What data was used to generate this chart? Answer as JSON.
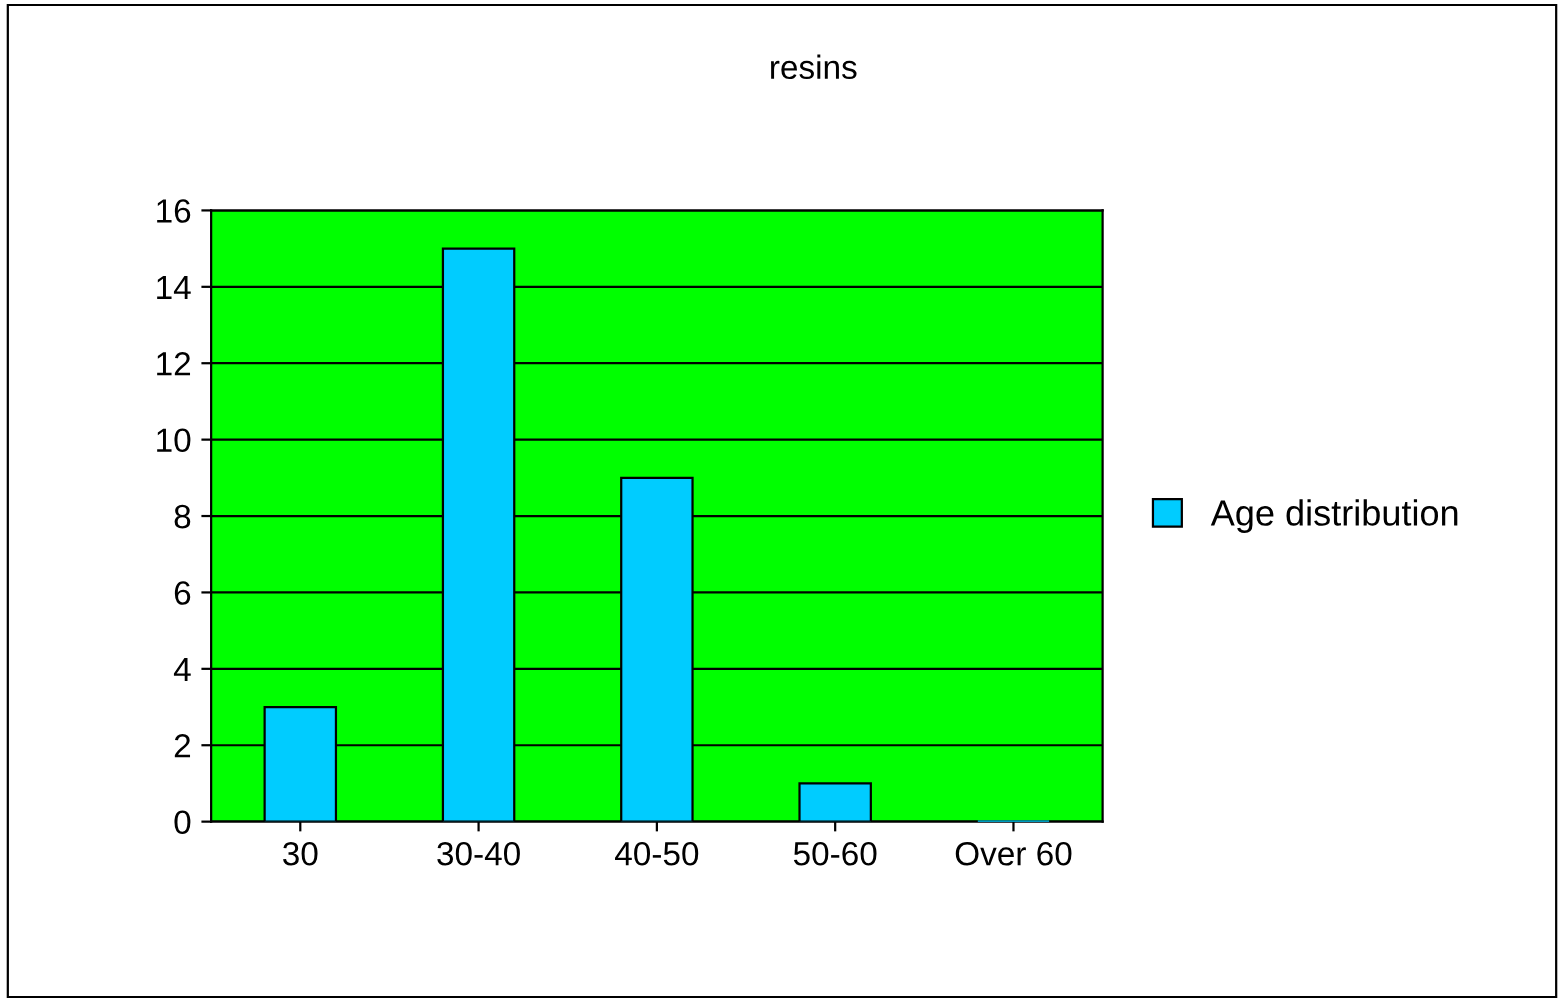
{
  "chart_data": {
    "type": "bar",
    "title": "resins",
    "categories": [
      "30",
      "30-40",
      "40-50",
      "50-60",
      "Over 60"
    ],
    "series": [
      {
        "name": "Age distribution",
        "color": "#00ccff",
        "values": [
          3,
          15,
          9,
          1,
          0
        ]
      }
    ],
    "ylim": [
      0,
      16
    ],
    "yticks": [
      0,
      2,
      4,
      6,
      8,
      10,
      12,
      14,
      16
    ],
    "grid": "y",
    "legend": "right"
  }
}
